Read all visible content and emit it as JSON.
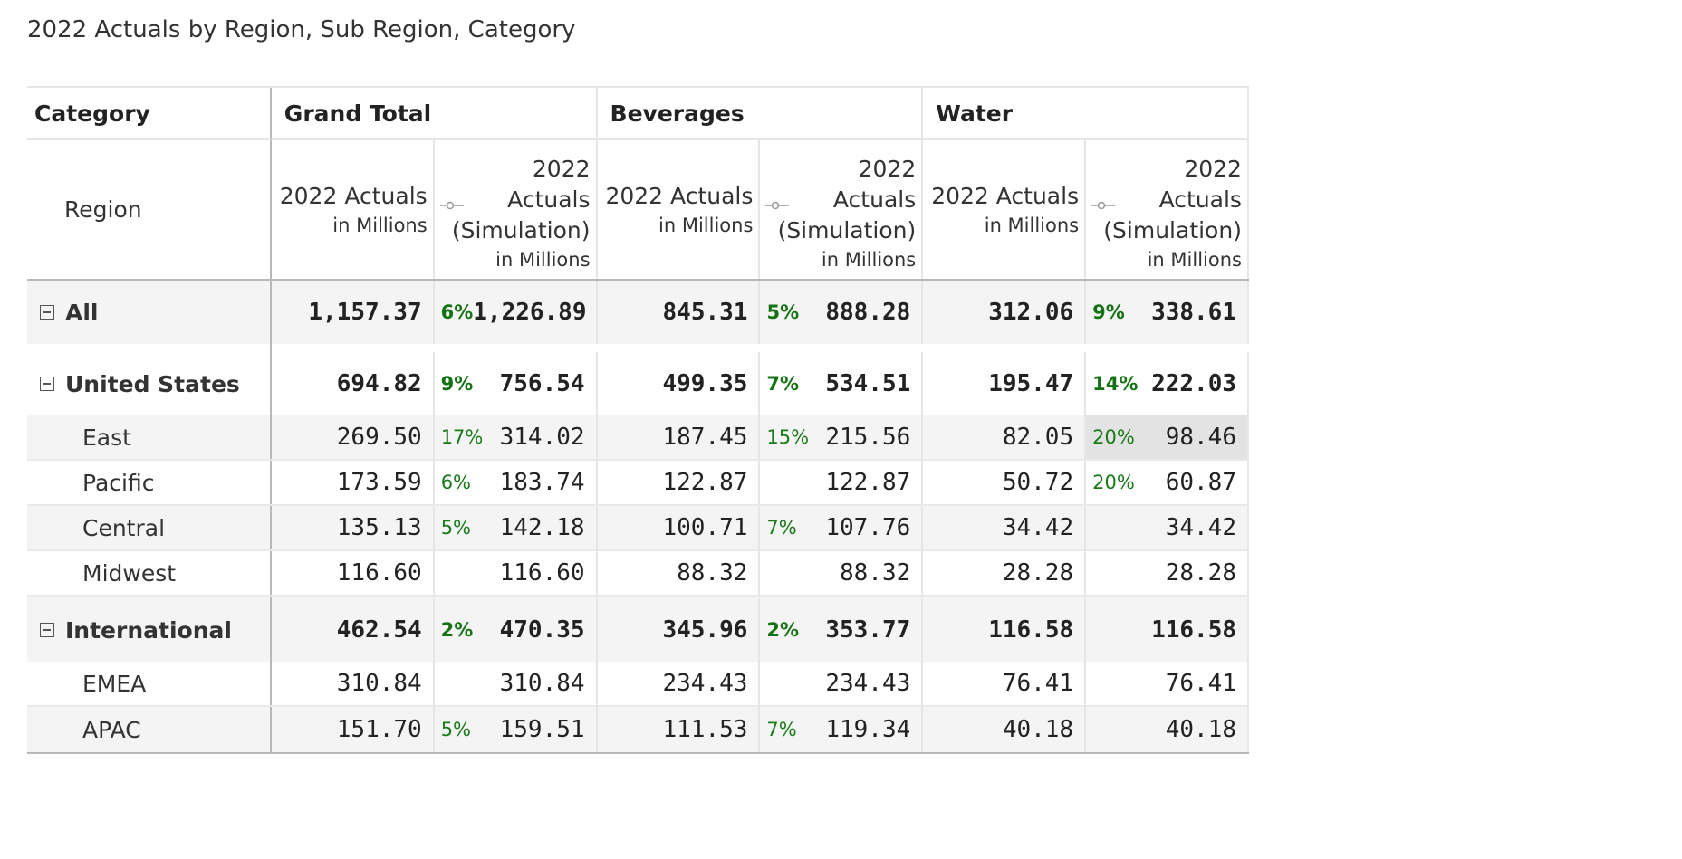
{
  "title": "2022 Actuals by Region, Sub Region, Category",
  "header": {
    "category_label": "Category",
    "region_label": "Region",
    "groups": [
      "Grand Total",
      "Beverages",
      "Water"
    ],
    "actual_label": "2022 Actuals",
    "sim_label_line1": "2022",
    "sim_label_line2": "Actuals",
    "sim_label_line3": "(Simulation)",
    "unit_label": "in Millions"
  },
  "rows": [
    {
      "label": "All",
      "level": "top",
      "cells": [
        {
          "actual": "1,157.37",
          "pct": "6%",
          "sim": "1,226.89"
        },
        {
          "actual": "845.31",
          "pct": "5%",
          "sim": "888.28"
        },
        {
          "actual": "312.06",
          "pct": "9%",
          "sim": "338.61"
        }
      ]
    },
    {
      "label": "United States",
      "level": "top",
      "cells": [
        {
          "actual": "694.82",
          "pct": "9%",
          "sim": "756.54"
        },
        {
          "actual": "499.35",
          "pct": "7%",
          "sim": "534.51"
        },
        {
          "actual": "195.47",
          "pct": "14%",
          "sim": "222.03"
        }
      ]
    },
    {
      "label": "East",
      "level": "sub",
      "cells": [
        {
          "actual": "269.50",
          "pct": "17%",
          "sim": "314.02"
        },
        {
          "actual": "187.45",
          "pct": "15%",
          "sim": "215.56"
        },
        {
          "actual": "82.05",
          "pct": "20%",
          "sim": "98.46"
        }
      ]
    },
    {
      "label": "Pacific",
      "level": "sub",
      "cells": [
        {
          "actual": "173.59",
          "pct": "6%",
          "sim": "183.74"
        },
        {
          "actual": "122.87",
          "pct": "",
          "sim": "122.87"
        },
        {
          "actual": "50.72",
          "pct": "20%",
          "sim": "60.87"
        }
      ]
    },
    {
      "label": "Central",
      "level": "sub",
      "cells": [
        {
          "actual": "135.13",
          "pct": "5%",
          "sim": "142.18"
        },
        {
          "actual": "100.71",
          "pct": "7%",
          "sim": "107.76"
        },
        {
          "actual": "34.42",
          "pct": "",
          "sim": "34.42"
        }
      ]
    },
    {
      "label": "Midwest",
      "level": "sub",
      "cells": [
        {
          "actual": "116.60",
          "pct": "",
          "sim": "116.60"
        },
        {
          "actual": "88.32",
          "pct": "",
          "sim": "88.32"
        },
        {
          "actual": "28.28",
          "pct": "",
          "sim": "28.28"
        }
      ]
    },
    {
      "label": "International",
      "level": "top",
      "cells": [
        {
          "actual": "462.54",
          "pct": "2%",
          "sim": "470.35"
        },
        {
          "actual": "345.96",
          "pct": "2%",
          "sim": "353.77"
        },
        {
          "actual": "116.58",
          "pct": "",
          "sim": "116.58"
        }
      ]
    },
    {
      "label": "EMEA",
      "level": "sub",
      "cells": [
        {
          "actual": "310.84",
          "pct": "",
          "sim": "310.84"
        },
        {
          "actual": "234.43",
          "pct": "",
          "sim": "234.43"
        },
        {
          "actual": "76.41",
          "pct": "",
          "sim": "76.41"
        }
      ]
    },
    {
      "label": "APAC",
      "level": "sub",
      "cells": [
        {
          "actual": "151.70",
          "pct": "5%",
          "sim": "159.51"
        },
        {
          "actual": "111.53",
          "pct": "7%",
          "sim": "119.34"
        },
        {
          "actual": "40.18",
          "pct": "",
          "sim": "40.18"
        }
      ]
    }
  ],
  "colors": {
    "positive_pct": "#1a7a1a",
    "alt_row": "#f4f4f4",
    "highlight": "#e3e3e3"
  }
}
